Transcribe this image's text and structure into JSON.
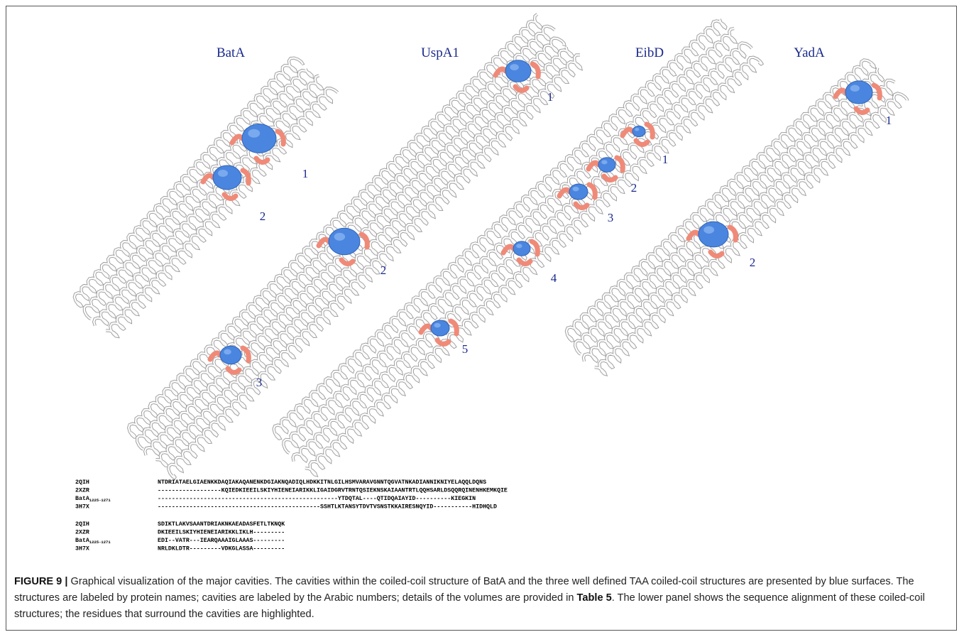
{
  "figure": {
    "structures": [
      {
        "name": "BatA",
        "cavities": [
          "1",
          "2"
        ]
      },
      {
        "name": "UspA1",
        "cavities": [
          "1",
          "2",
          "3"
        ]
      },
      {
        "name": "EibD",
        "cavities": [
          "1",
          "2",
          "3",
          "4",
          "5"
        ]
      },
      {
        "name": "YadA",
        "cavities": [
          "1",
          "2"
        ]
      }
    ],
    "alignment": {
      "blocks": [
        [
          {
            "id": "2QIH",
            "sequence": "NTDRIATAELGIAENKKDAQIAKAQANENKDGIAKNQADIQLHDKKITNLGILHSMVARAVGNNTQGVATNKADIANNIKNIYELAQQLDQNS"
          },
          {
            "id": "2XZR",
            "sequence": "------------------KQIEDKIEEILSKIYHIENEIARIKKLIGAIDGRVTRNTQSIEKNSKAIAANTRTLQQHSARLDSQQRQINENHKEMKQIE"
          },
          {
            "id": "BatA",
            "sub": "1225-1271",
            "sequence": "---------------------------------------------------YTDQTAL----QTIDQAIAYID----------KIEGKIN"
          },
          {
            "id": "3H7X",
            "sequence": "----------------------------------------------SSHTLKTANSYTDVTVSNSTKKAIRESNQYID-----------HIDHQLD"
          }
        ],
        [
          {
            "id": "2QIH",
            "sequence": "SDIKTLAKVSAANTDRIAKNKAEADASFETLTKNQK"
          },
          {
            "id": "2XZR",
            "sequence": "DKIEEILSKIYHIENEIARIKKLIKLH---------"
          },
          {
            "id": "BatA",
            "sub": "1225-1271",
            "sequence": "EDI--VATR---IEARQAAAIGLAAAS---------"
          },
          {
            "id": "3H7X",
            "sequence": "NRLDKLDTR---------VDKGLASSA---------"
          }
        ]
      ]
    },
    "caption": {
      "label": "FIGURE 9 |",
      "text1": " Graphical visualization of the major cavities. The cavities within the coiled-coil structure of BatA and the three well defined TAA coiled-coil structures are presented by blue surfaces. The structures are labeled by protein names; cavities are labeled by the Arabic numbers; details of the volumes are provided in ",
      "ref": "Table 5",
      "text2": ". The lower panel shows the sequence alignment of these coiled-coil structures; the residues that surround the cavities are highlighted."
    }
  }
}
